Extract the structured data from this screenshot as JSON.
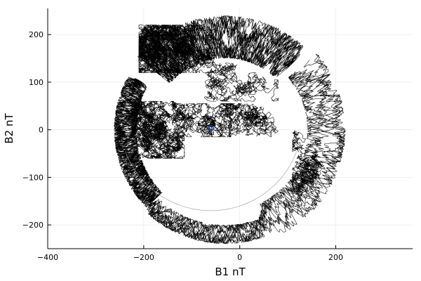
{
  "chart_data": {
    "type": "line",
    "title": "",
    "xlabel": "B1 nT",
    "ylabel": "B2 nT",
    "xlim": [
      -400,
      360
    ],
    "ylim": [
      -250,
      255
    ],
    "xticks": [
      -400,
      -200,
      0,
      200
    ],
    "yticks": [
      -200,
      -100,
      0,
      100,
      200
    ],
    "xtick_labels": [
      "−400",
      "−200",
      "0",
      "200"
    ],
    "ytick_labels": [
      "−200",
      "−100",
      "0",
      "100",
      "200"
    ],
    "grid": true,
    "legend": "none",
    "line_color": "#000000",
    "marker_color": "#1f3fa0",
    "series": [
      {
        "points_ref": "hodogram-trace",
        "envelope_radius_nT": 240,
        "envelope_center": [
          -30,
          0
        ],
        "description_points": [
          [
            -260,
            0
          ],
          [
            -255,
            -80
          ],
          [
            -230,
            -150
          ],
          [
            -190,
            -200
          ],
          [
            -140,
            -230
          ],
          [
            -70,
            -240
          ],
          [
            -150,
            40
          ],
          [
            -100,
            200
          ],
          [
            0,
            230
          ],
          [
            60,
            220
          ],
          [
            120,
            140
          ],
          [
            150,
            60
          ],
          [
            200,
            20
          ],
          [
            220,
            -40
          ],
          [
            200,
            -100
          ],
          [
            150,
            -160
          ],
          [
            100,
            -170
          ],
          [
            -60,
            0
          ],
          [
            -20,
            40
          ],
          [
            40,
            20
          ],
          [
            80,
            -20
          ],
          [
            120,
            0
          ]
        ]
      }
    ],
    "arc_segment": {
      "center": [
        -60,
        20
      ],
      "radius": 190,
      "start_angle_deg": 200,
      "end_angle_deg": 340
    },
    "marker": {
      "x": -60,
      "y": 3,
      "shape": "circle"
    }
  }
}
